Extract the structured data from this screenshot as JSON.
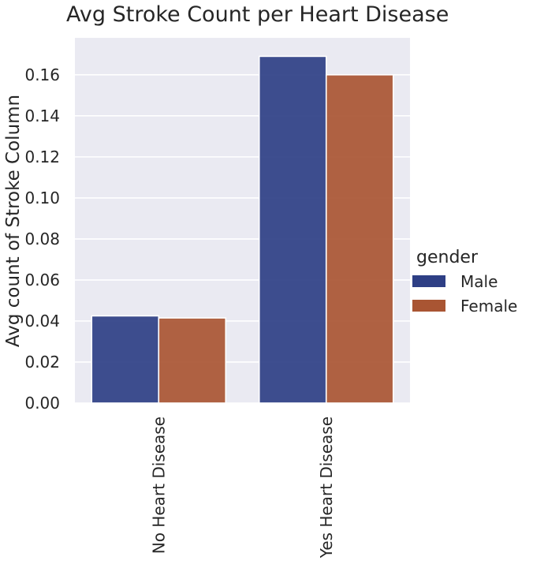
{
  "chart_data": {
    "type": "bar",
    "title": "Avg Stroke Count per Heart Disease",
    "xlabel": "",
    "ylabel": "Avg count of Stroke Column",
    "categories": [
      "No Heart Disease",
      "Yes Heart Disease"
    ],
    "series": [
      {
        "name": "Male",
        "values": [
          0.0425,
          0.169
        ],
        "color": "#2e3f85"
      },
      {
        "name": "Female",
        "values": [
          0.0415,
          0.16
        ],
        "color": "#a95533"
      }
    ],
    "ylim": [
      0,
      0.178
    ],
    "yticks": [
      "0.00",
      "0.02",
      "0.04",
      "0.06",
      "0.08",
      "0.10",
      "0.12",
      "0.14",
      "0.16"
    ],
    "grid": true,
    "background": "#eaeaf2",
    "legend": {
      "title": "gender",
      "placement": "right"
    }
  }
}
